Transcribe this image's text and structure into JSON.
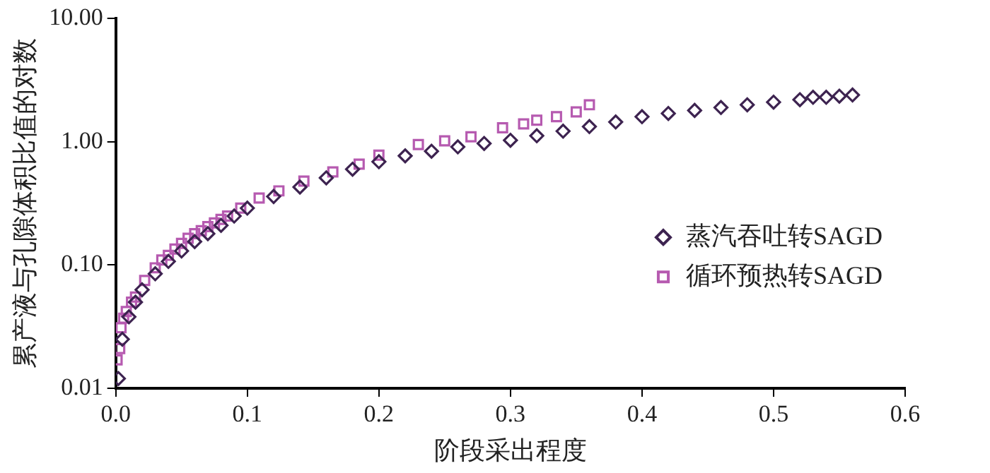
{
  "chart_data": {
    "type": "scatter",
    "xlabel": "阶段采出程度",
    "ylabel": "累产液与孔隙体积比值的对数",
    "log": "y",
    "grid": false,
    "legend": "right",
    "xlim": [
      0,
      0.6
    ],
    "xticks": [
      {
        "value": 0,
        "label": "0.0"
      },
      {
        "value": 0.1,
        "label": "0.1"
      },
      {
        "value": 0.2,
        "label": "0.2"
      },
      {
        "value": 0.3,
        "label": "0.3"
      },
      {
        "value": 0.4,
        "label": "0.4"
      },
      {
        "value": 0.5,
        "label": "0.5"
      },
      {
        "value": 0.6,
        "label": "0.6"
      }
    ],
    "ylim": [
      0.01,
      10
    ],
    "yticks": [
      {
        "value": 0.01,
        "label": "0.01"
      },
      {
        "value": 0.1,
        "label": "0.10"
      },
      {
        "value": 1,
        "label": "1.00"
      },
      {
        "value": 10,
        "label": "10.00"
      }
    ],
    "series": [
      {
        "name": "蒸汽吞吐转SAGD",
        "color": "#3d2350",
        "marker": "diamond",
        "x": [
          0.002,
          0.005,
          0.01,
          0.015,
          0.02,
          0.03,
          0.04,
          0.05,
          0.06,
          0.07,
          0.08,
          0.09,
          0.1,
          0.12,
          0.14,
          0.16,
          0.18,
          0.2,
          0.22,
          0.24,
          0.26,
          0.28,
          0.3,
          0.32,
          0.34,
          0.36,
          0.38,
          0.4,
          0.42,
          0.44,
          0.46,
          0.48,
          0.5,
          0.52,
          0.53,
          0.54,
          0.55,
          0.56
        ],
        "values": [
          0.012,
          0.025,
          0.038,
          0.05,
          0.063,
          0.085,
          0.107,
          0.13,
          0.155,
          0.18,
          0.21,
          0.25,
          0.29,
          0.36,
          0.43,
          0.51,
          0.6,
          0.69,
          0.77,
          0.84,
          0.91,
          0.97,
          1.03,
          1.12,
          1.22,
          1.33,
          1.45,
          1.6,
          1.7,
          1.8,
          1.9,
          2.0,
          2.1,
          2.2,
          2.3,
          2.3,
          2.35,
          2.4
        ]
      },
      {
        "name": "循环预热转SAGD",
        "color": "#b65ab0",
        "marker": "square",
        "x": [
          0.001,
          0.003,
          0.004,
          0.006,
          0.008,
          0.012,
          0.015,
          0.022,
          0.03,
          0.035,
          0.04,
          0.045,
          0.05,
          0.055,
          0.06,
          0.065,
          0.07,
          0.075,
          0.08,
          0.085,
          0.095,
          0.109,
          0.124,
          0.143,
          0.165,
          0.185,
          0.2,
          0.23,
          0.25,
          0.27,
          0.294,
          0.31,
          0.32,
          0.335,
          0.35,
          0.36
        ],
        "values": [
          0.017,
          0.021,
          0.031,
          0.037,
          0.042,
          0.05,
          0.055,
          0.075,
          0.095,
          0.11,
          0.12,
          0.135,
          0.15,
          0.165,
          0.18,
          0.19,
          0.205,
          0.22,
          0.235,
          0.25,
          0.29,
          0.35,
          0.4,
          0.48,
          0.57,
          0.66,
          0.78,
          0.95,
          1.02,
          1.1,
          1.3,
          1.4,
          1.5,
          1.6,
          1.75,
          2.0
        ]
      }
    ]
  }
}
